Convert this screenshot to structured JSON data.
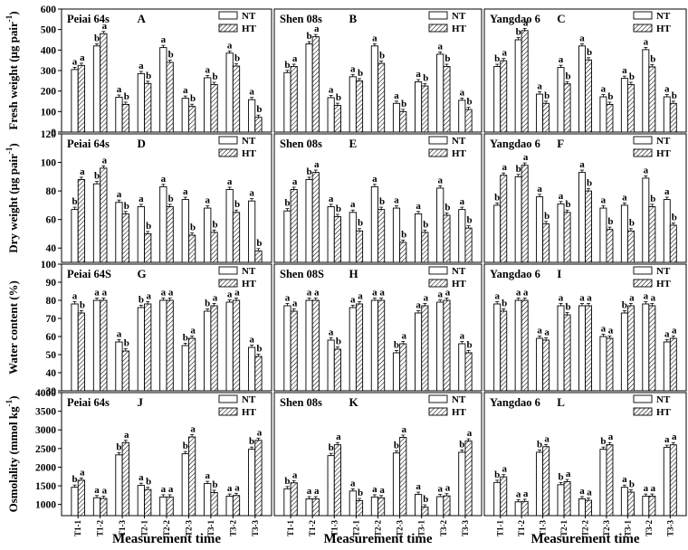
{
  "colors": {
    "line": "#000000",
    "nt_fill": "#ffffff",
    "ht_hatch": "#000000"
  },
  "legend": {
    "nt": "NT",
    "ht": "HT"
  },
  "cultivars": [
    "Peiai 64s",
    "Shen 08s",
    "Yangdao 6"
  ],
  "categories": [
    "T1-1",
    "T1-2",
    "T1-3",
    "T2-1",
    "T2-2",
    "T2-3",
    "T3-1",
    "T3-2",
    "T3-3"
  ],
  "xlabel": "Measurement time",
  "rows": [
    {
      "ylabel": "Fresh weight (μg pair",
      "ylabel_sup": "-1",
      "ylabel_end": ")",
      "ylim": [
        0,
        600
      ],
      "ticks": [
        "0",
        "100",
        "200",
        "300",
        "400",
        "500",
        "600"
      ],
      "panels": [
        {
          "cultivar": "Peiai 64s",
          "letter": "A",
          "nt": [
            305,
            420,
            170,
            285,
            412,
            165,
            265,
            385,
            158
          ],
          "ht": [
            325,
            480,
            135,
            237,
            340,
            125,
            232,
            322,
            72
          ],
          "nt_sig": [
            "a",
            "b",
            "a",
            "a",
            "a",
            "a",
            "a",
            "a",
            "a"
          ],
          "ht_sig": [
            "a",
            "a",
            "b",
            "b",
            "b",
            "b",
            "b",
            "b",
            "b"
          ]
        },
        {
          "cultivar": "Shen 08s",
          "letter": "B",
          "nt": [
            290,
            430,
            168,
            270,
            420,
            140,
            245,
            380,
            155
          ],
          "ht": [
            320,
            465,
            130,
            250,
            335,
            100,
            225,
            320,
            110
          ],
          "nt_sig": [
            "b",
            "b",
            "a",
            "a",
            "a",
            "a",
            "a",
            "a",
            "a"
          ],
          "ht_sig": [
            "a",
            "a",
            "b",
            "b",
            "b",
            "b",
            "b",
            "b",
            "b"
          ]
        },
        {
          "cultivar": "Yangdao 6",
          "letter": "C",
          "nt": [
            320,
            450,
            185,
            315,
            420,
            172,
            262,
            402,
            172
          ],
          "ht": [
            348,
            495,
            140,
            235,
            352,
            135,
            232,
            318,
            140
          ],
          "nt_sig": [
            "b",
            "b",
            "a",
            "a",
            "a",
            "a",
            "a",
            "a",
            "a"
          ],
          "ht_sig": [
            "a",
            "a",
            "b",
            "b",
            "b",
            "b",
            "b",
            "b",
            "b"
          ]
        }
      ]
    },
    {
      "ylabel": "Dry weight (μg pair",
      "ylabel_sup": "-1",
      "ylabel_end": ")",
      "ylim": [
        30,
        120
      ],
      "ticks": [
        "40",
        "60",
        "80",
        "100",
        "120"
      ],
      "tick_values": [
        40,
        60,
        80,
        100,
        120
      ],
      "panels": [
        {
          "cultivar": "Peiai 64s",
          "letter": "D",
          "nt": [
            67,
            85,
            72,
            69,
            83,
            74,
            68,
            81,
            73
          ],
          "ht": [
            88,
            96,
            64,
            50,
            69,
            49,
            51,
            65,
            38
          ],
          "nt_sig": [
            "b",
            "b",
            "a",
            "a",
            "a",
            "a",
            "a",
            "a",
            "a"
          ],
          "ht_sig": [
            "a",
            "a",
            "b",
            "b",
            "b",
            "b",
            "b",
            "b",
            "b"
          ]
        },
        {
          "cultivar": "Shen 08s",
          "letter": "E",
          "nt": [
            66,
            88,
            69,
            65,
            83,
            68,
            64,
            82,
            67
          ],
          "ht": [
            81,
            93,
            62,
            52,
            67,
            44,
            51,
            63,
            54
          ],
          "nt_sig": [
            "b",
            "b",
            "a",
            "a",
            "a",
            "a",
            "a",
            "a",
            "a"
          ],
          "ht_sig": [
            "a",
            "a",
            "b",
            "b",
            "b",
            "b",
            "b",
            "b",
            "b"
          ]
        },
        {
          "cultivar": "Yangdao 6",
          "letter": "F",
          "nt": [
            70,
            90,
            76,
            71,
            93,
            68,
            70,
            89,
            74
          ],
          "ht": [
            91,
            98,
            57,
            65,
            80,
            53,
            52,
            69,
            56
          ],
          "nt_sig": [
            "b",
            "b",
            "a",
            "a",
            "a",
            "a",
            "a",
            "a",
            "a"
          ],
          "ht_sig": [
            "a",
            "a",
            "b",
            "b",
            "b",
            "b",
            "b",
            "b",
            "b"
          ]
        }
      ]
    },
    {
      "ylabel": "Water content (%)",
      "ylim": [
        30,
        100
      ],
      "ticks": [
        "30",
        "40",
        "50",
        "60",
        "70",
        "80",
        "90",
        "100"
      ],
      "panels": [
        {
          "cultivar": "Peiai 64S",
          "letter": "G",
          "nt": [
            78,
            80,
            57,
            76,
            80,
            55,
            74,
            79,
            54
          ],
          "ht": [
            73,
            80,
            52,
            78,
            80,
            59,
            77,
            80,
            49
          ],
          "nt_sig": [
            "a",
            "a",
            "a",
            "b",
            "a",
            "b",
            "b",
            "a",
            "a"
          ],
          "ht_sig": [
            "b",
            "a",
            "b",
            "a",
            "a",
            "a",
            "a",
            "a",
            "b"
          ]
        },
        {
          "cultivar": "Shen 08S",
          "letter": "H",
          "nt": [
            77,
            80,
            58,
            76,
            80,
            51,
            73,
            79,
            56
          ],
          "ht": [
            74,
            80,
            53,
            78,
            80,
            56,
            77,
            80,
            51
          ],
          "nt_sig": [
            "a",
            "a",
            "a",
            "a",
            "a",
            "b",
            "a",
            "a",
            "a"
          ],
          "ht_sig": [
            "a",
            "a",
            "b",
            "a",
            "a",
            "a",
            "a",
            "a",
            "b"
          ]
        },
        {
          "cultivar": "Yangdao 6",
          "letter": "I",
          "nt": [
            78,
            80,
            59,
            77,
            77,
            60,
            73,
            78,
            57
          ],
          "ht": [
            74,
            80,
            58,
            72,
            77,
            59,
            77,
            77,
            59
          ],
          "nt_sig": [
            "a",
            "a",
            "a",
            "a",
            "a",
            "a",
            "b",
            "a",
            "a"
          ],
          "ht_sig": [
            "b",
            "a",
            "a",
            "b",
            "a",
            "a",
            "a",
            "a",
            "a"
          ]
        }
      ]
    },
    {
      "ylabel": "Osmolality (mmol kg",
      "ylabel_sup": "-1",
      "ylabel_end": ")",
      "ylim": [
        700,
        4000
      ],
      "ticks": [
        "1000",
        "1500",
        "2000",
        "2500",
        "3000",
        "3500",
        "4000"
      ],
      "tick_values": [
        1000,
        1500,
        2000,
        2500,
        3000,
        3500,
        4000
      ],
      "panels": [
        {
          "cultivar": "Peiai 64s",
          "letter": "J",
          "nt": [
            1460,
            1180,
            2330,
            1510,
            1200,
            2360,
            1560,
            1220,
            2480
          ],
          "ht": [
            1650,
            1160,
            2660,
            1400,
            1200,
            2810,
            1320,
            1240,
            2720
          ],
          "nt_sig": [
            "b",
            "a",
            "b",
            "a",
            "a",
            "b",
            "a",
            "a",
            "b"
          ],
          "ht_sig": [
            "a",
            "a",
            "a",
            "b",
            "a",
            "a",
            "b",
            "a",
            "a"
          ]
        },
        {
          "cultivar": "Shen 08s",
          "letter": "K",
          "nt": [
            1420,
            1150,
            2310,
            1360,
            1200,
            2380,
            1270,
            1210,
            2400
          ],
          "ht": [
            1580,
            1150,
            2600,
            1100,
            1180,
            2800,
            930,
            1230,
            2700
          ],
          "nt_sig": [
            "b",
            "a",
            "b",
            "a",
            "a",
            "b",
            "a",
            "a",
            "b"
          ],
          "ht_sig": [
            "a",
            "a",
            "a",
            "b",
            "a",
            "a",
            "b",
            "a",
            "a"
          ]
        },
        {
          "cultivar": "Yangdao 6",
          "letter": "L",
          "nt": [
            1590,
            1070,
            2400,
            1530,
            1150,
            2480,
            1460,
            1220,
            2530
          ],
          "ht": [
            1740,
            1080,
            2550,
            1610,
            1110,
            2600,
            1330,
            1220,
            2600
          ],
          "nt_sig": [
            "b",
            "a",
            "b",
            "b",
            "a",
            "b",
            "a",
            "a",
            "a"
          ],
          "ht_sig": [
            "a",
            "a",
            "a",
            "a",
            "a",
            "a",
            "b",
            "a",
            "a"
          ]
        }
      ]
    }
  ]
}
